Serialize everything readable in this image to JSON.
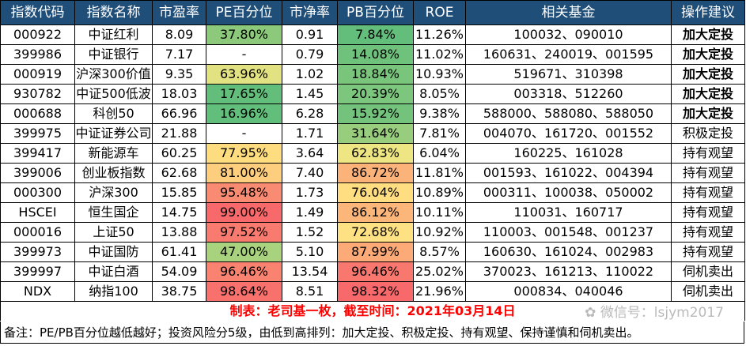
{
  "headers": [
    "指数代码",
    "指数名称",
    "市盈率",
    "PE百分位",
    "市净率",
    "PB百分位",
    "ROE",
    "相关基金",
    "操作建议"
  ],
  "rows": [
    {
      "code": "000922",
      "name": "中证红利",
      "pe": "8.09",
      "pe_pct": "37.80%",
      "pe_color": "#8cc97b",
      "pb": "0.91",
      "pb_pct": "7.84%",
      "pb_color": "#63be7b",
      "roe": "11.26%",
      "funds": "100032、090010",
      "advice": "加大定投",
      "advice_bold": true
    },
    {
      "code": "399986",
      "name": "中证银行",
      "pe": "7.17",
      "pe_pct": "-",
      "pe_color": "#ffffff",
      "pb": "0.79",
      "pb_pct": "14.08%",
      "pb_color": "#6fc27c",
      "roe": "11.02%",
      "funds": "160631、240019、001595",
      "advice": "加大定投",
      "advice_bold": true
    },
    {
      "code": "000919",
      "name": "沪深300价值",
      "pe": "9.35",
      "pe_pct": "63.96%",
      "pe_color": "#e3e282",
      "pb": "1.02",
      "pb_pct": "18.84%",
      "pb_color": "#79c57c",
      "roe": "10.93%",
      "funds": "519671、310398",
      "advice": "加大定投",
      "advice_bold": true
    },
    {
      "code": "930782",
      "name": "中证500低波",
      "pe": "18.03",
      "pe_pct": "17.65%",
      "pe_color": "#63be7b",
      "pb": "1.45",
      "pb_pct": "20.39%",
      "pb_color": "#7cc67d",
      "roe": "8.05%",
      "funds": "003318、512260",
      "advice": "加大定投",
      "advice_bold": true
    },
    {
      "code": "000688",
      "name": "科创50",
      "pe": "66.96",
      "pe_pct": "16.96%",
      "pe_color": "#62be7b",
      "pb": "6.28",
      "pb_pct": "15.92%",
      "pb_color": "#73c37c",
      "roe": "9.38%",
      "funds": "588000、588080、588050",
      "advice": "加大定投",
      "advice_bold": true
    },
    {
      "code": "399975",
      "name": "中证证券公司",
      "pe": "21.88",
      "pe_pct": "-",
      "pe_color": "#ffffff",
      "pb": "1.71",
      "pb_pct": "31.64%",
      "pb_color": "#99cd7e",
      "roe": "7.81%",
      "funds": "004070、161720、001552",
      "advice": "积极定投",
      "advice_bold": false
    },
    {
      "code": "399417",
      "name": "新能源车",
      "pe": "60.25",
      "pe_pct": "77.95%",
      "pe_color": "#fedd81",
      "pb": "3.64",
      "pb_pct": "62.83%",
      "pb_color": "#eee683",
      "roe": "6.04%",
      "funds": "160225、161028",
      "advice": "持有观望",
      "advice_bold": false
    },
    {
      "code": "399006",
      "name": "创业板指数",
      "pe": "62.68",
      "pe_pct": "81.00%",
      "pe_color": "#fdce7e",
      "pb": "7.40",
      "pb_pct": "86.72%",
      "pb_color": "#fcb37a",
      "roe": "11.81%",
      "funds": "001593、161022、004394",
      "advice": "持有观望",
      "advice_bold": false
    },
    {
      "code": "000300",
      "name": "沪深300",
      "pe": "15.85",
      "pe_pct": "95.48%",
      "pe_color": "#f98b72",
      "pb": "1.73",
      "pb_pct": "76.04%",
      "pb_color": "#fede81",
      "roe": "10.89%",
      "funds": "000311、100038、050002",
      "advice": "持有观望",
      "advice_bold": false
    },
    {
      "code": "HSCEI",
      "name": "恒生国企",
      "pe": "14.75",
      "pe_pct": "99.00%",
      "pe_color": "#f8696b",
      "pb": "1.49",
      "pb_pct": "86.12%",
      "pb_color": "#fcb67a",
      "roe": "10.11%",
      "funds": "110031、160717",
      "advice": "持有观望",
      "advice_bold": false
    },
    {
      "code": "000016",
      "name": "上证50",
      "pe": "13.88",
      "pe_pct": "97.52%",
      "pe_color": "#f97a6f",
      "pb": "1.52",
      "pb_pct": "72.68%",
      "pb_color": "#fee183",
      "roe": "10.92%",
      "funds": "110003、001548、001237",
      "advice": "持有观望",
      "advice_bold": false
    },
    {
      "code": "399973",
      "name": "中证国防",
      "pe": "61.41",
      "pe_pct": "47.00%",
      "pe_color": "#a9d27f",
      "pb": "5.10",
      "pb_pct": "87.99%",
      "pb_color": "#fcaa78",
      "roe": "8.57%",
      "funds": "160630、161024、002983",
      "advice": "持有观望",
      "advice_bold": false
    },
    {
      "code": "399997",
      "name": "中证白酒",
      "pe": "54.09",
      "pe_pct": "96.46%",
      "pe_color": "#f98370",
      "pb": "13.54",
      "pb_pct": "96.46%",
      "pb_color": "#f8776e",
      "roe": "25.02%",
      "funds": "370023、161213、110022",
      "advice": "伺机卖出",
      "advice_bold": false
    },
    {
      "code": "NDX",
      "name": "纳指100",
      "pe": "38.75",
      "pe_pct": "98.64%",
      "pe_color": "#f8716d",
      "pb": "8.51",
      "pb_pct": "98.32%",
      "pb_color": "#f8696b",
      "roe": "21.96%",
      "funds": "000834、040046",
      "advice": "伺机卖出",
      "advice_bold": false
    }
  ],
  "maker_text": "制表：老司基一枚，截至时间：2021年03月14日",
  "watermark": "微信号：lsjym2017",
  "note": "备注：PE/PB百分位越低越好；投资风险分5级，由低到高排列：加大定投、积极定投、持有观望、保持谨慎和伺机卖出。"
}
